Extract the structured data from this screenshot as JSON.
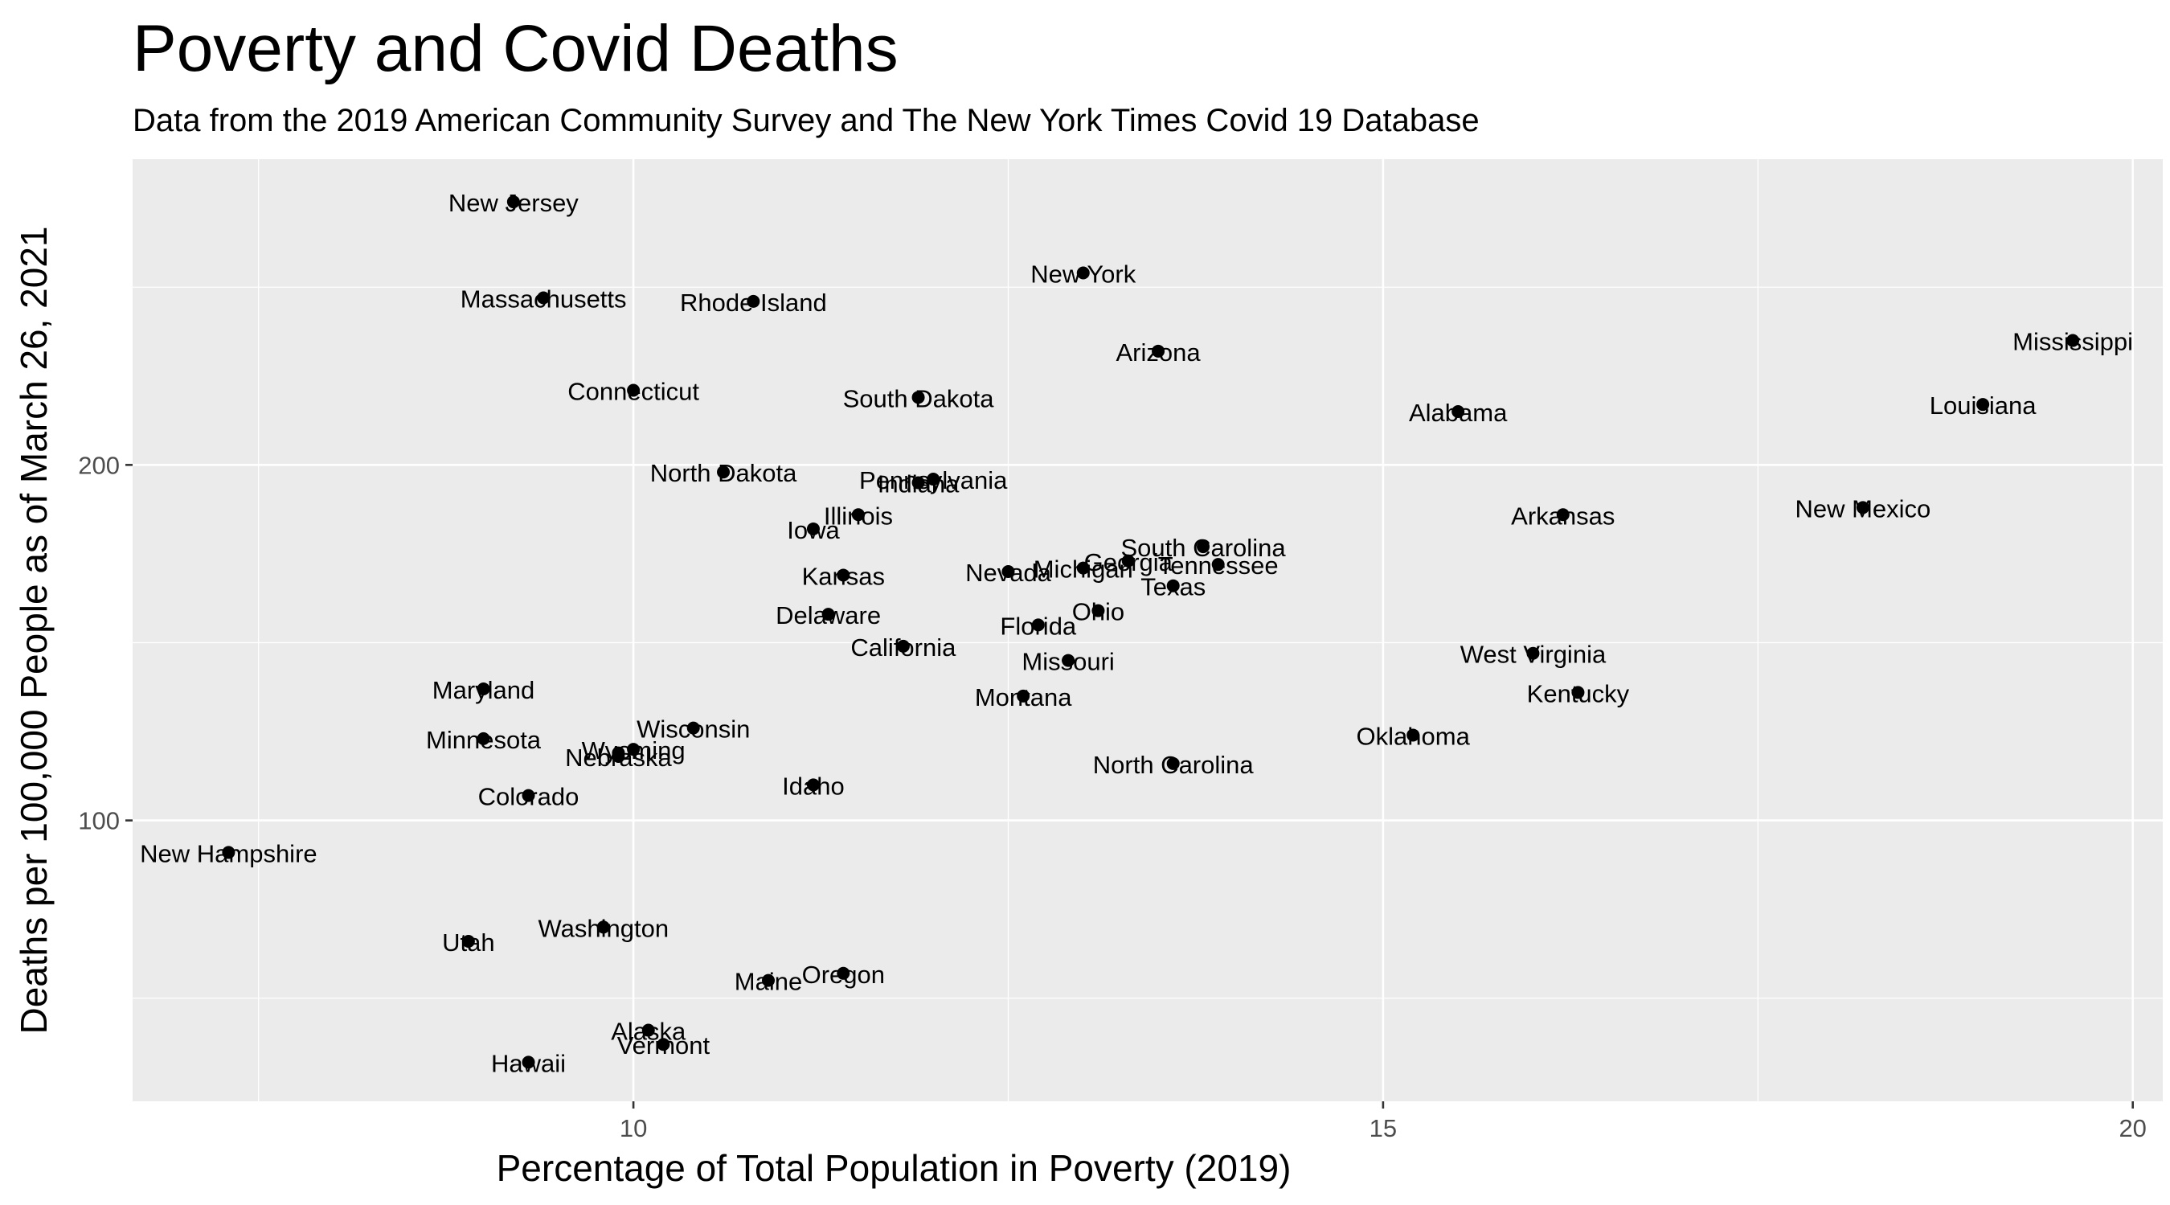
{
  "chart_data": {
    "type": "scatter",
    "title": "Poverty and Covid Deaths",
    "subtitle": "Data from the 2019 American Community Survey and The New York Times Covid 19 Database",
    "xlabel": "Percentage of Total Population in Poverty (2019)",
    "ylabel": "Deaths per 100,000 People as of March 26, 2021",
    "xlim": [
      6.66,
      20.2
    ],
    "ylim": [
      21,
      286
    ],
    "x_ticks": [
      10,
      15,
      20
    ],
    "y_ticks": [
      100,
      200
    ],
    "x_tick_labels": [
      "10",
      "15",
      "20"
    ],
    "y_tick_labels": [
      "100",
      "200"
    ],
    "grid": true,
    "points": [
      {
        "label": "New Jersey",
        "x": 9.2,
        "y": 274
      },
      {
        "label": "Massachusetts",
        "x": 9.4,
        "y": 247
      },
      {
        "label": "Rhode Island",
        "x": 10.8,
        "y": 246
      },
      {
        "label": "New York",
        "x": 13.0,
        "y": 254
      },
      {
        "label": "Arizona",
        "x": 13.5,
        "y": 232
      },
      {
        "label": "Mississippi",
        "x": 19.6,
        "y": 235
      },
      {
        "label": "Louisiana",
        "x": 19.0,
        "y": 217
      },
      {
        "label": "Connecticut",
        "x": 10.0,
        "y": 221
      },
      {
        "label": "South Dakota",
        "x": 11.9,
        "y": 219
      },
      {
        "label": "Alabama",
        "x": 15.5,
        "y": 215
      },
      {
        "label": "North Dakota",
        "x": 10.6,
        "y": 198
      },
      {
        "label": "Pennsylvania",
        "x": 12.0,
        "y": 196
      },
      {
        "label": "Indiana",
        "x": 11.9,
        "y": 195
      },
      {
        "label": "New Mexico",
        "x": 18.2,
        "y": 188
      },
      {
        "label": "Illinois",
        "x": 11.5,
        "y": 186
      },
      {
        "label": "Arkansas",
        "x": 16.2,
        "y": 186
      },
      {
        "label": "Iowa",
        "x": 11.2,
        "y": 182
      },
      {
        "label": "South Carolina",
        "x": 13.8,
        "y": 177
      },
      {
        "label": "Georgia",
        "x": 13.3,
        "y": 173
      },
      {
        "label": "Tennessee",
        "x": 13.9,
        "y": 172
      },
      {
        "label": "Michigan",
        "x": 13.0,
        "y": 171
      },
      {
        "label": "Nevada",
        "x": 12.5,
        "y": 170
      },
      {
        "label": "Kansas",
        "x": 11.4,
        "y": 169
      },
      {
        "label": "Texas",
        "x": 13.6,
        "y": 166
      },
      {
        "label": "Ohio",
        "x": 13.1,
        "y": 159
      },
      {
        "label": "Delaware",
        "x": 11.3,
        "y": 158
      },
      {
        "label": "Florida",
        "x": 12.7,
        "y": 155
      },
      {
        "label": "California",
        "x": 11.8,
        "y": 149
      },
      {
        "label": "Missouri",
        "x": 12.9,
        "y": 145
      },
      {
        "label": "West Virginia",
        "x": 16.0,
        "y": 147
      },
      {
        "label": "Maryland",
        "x": 9.0,
        "y": 137
      },
      {
        "label": "Kentucky",
        "x": 16.3,
        "y": 136
      },
      {
        "label": "Montana",
        "x": 12.6,
        "y": 135
      },
      {
        "label": "Wisconsin",
        "x": 10.4,
        "y": 126
      },
      {
        "label": "Minnesota",
        "x": 9.0,
        "y": 123
      },
      {
        "label": "Oklahoma",
        "x": 15.2,
        "y": 124
      },
      {
        "label": "Wyoming",
        "x": 10.0,
        "y": 120
      },
      {
        "label": "Massachusetts",
        "x": 9.9,
        "y": 119,
        "hidden_label": true
      },
      {
        "label": "Nebraska",
        "x": 9.9,
        "y": 118
      },
      {
        "label": "North Carolina",
        "x": 13.6,
        "y": 116
      },
      {
        "label": "Idaho",
        "x": 11.2,
        "y": 110
      },
      {
        "label": "Colorado",
        "x": 9.3,
        "y": 107
      },
      {
        "label": "New Hampshire",
        "x": 7.3,
        "y": 91
      },
      {
        "label": "Washington",
        "x": 9.8,
        "y": 70
      },
      {
        "label": "Utah",
        "x": 8.9,
        "y": 66
      },
      {
        "label": "Oregon",
        "x": 11.4,
        "y": 57
      },
      {
        "label": "Maine",
        "x": 10.9,
        "y": 55
      },
      {
        "label": "Alaska",
        "x": 10.1,
        "y": 41
      },
      {
        "label": "Vermont",
        "x": 10.2,
        "y": 37
      },
      {
        "label": "Hawaii",
        "x": 9.3,
        "y": 32
      }
    ]
  }
}
